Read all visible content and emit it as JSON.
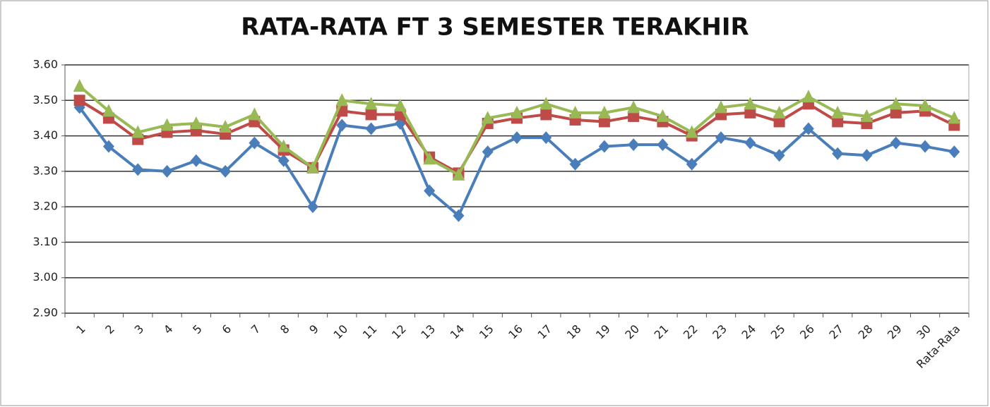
{
  "chart_data": {
    "type": "line",
    "title": "RATA-RATA FT 3 SEMESTER TERAKHIR",
    "categories": [
      "1",
      "2",
      "3",
      "4",
      "5",
      "6",
      "7",
      "8",
      "9",
      "10",
      "11",
      "12",
      "13",
      "14",
      "15",
      "16",
      "17",
      "18",
      "19",
      "20",
      "21",
      "22",
      "23",
      "24",
      "25",
      "26",
      "27",
      "28",
      "29",
      "30",
      "Rata-Rata"
    ],
    "series": [
      {
        "color": "#4a7ebb",
        "marker": "diamond",
        "values": [
          3.48,
          3.37,
          3.305,
          3.3,
          3.33,
          3.3,
          3.38,
          3.33,
          3.2,
          3.43,
          3.42,
          3.435,
          3.245,
          3.175,
          3.355,
          3.395,
          3.395,
          3.32,
          3.37,
          3.375,
          3.375,
          3.32,
          3.395,
          3.38,
          3.345,
          3.42,
          3.35,
          3.345,
          3.38,
          3.37,
          3.355
        ]
      },
      {
        "color": "#be4b48",
        "marker": "square",
        "values": [
          3.5,
          3.45,
          3.39,
          3.41,
          3.415,
          3.405,
          3.44,
          3.36,
          3.31,
          3.47,
          3.46,
          3.46,
          3.34,
          3.295,
          3.435,
          3.45,
          3.46,
          3.445,
          3.44,
          3.455,
          3.44,
          3.4,
          3.46,
          3.465,
          3.44,
          3.49,
          3.44,
          3.435,
          3.465,
          3.47,
          3.43
        ]
      },
      {
        "color": "#98b954",
        "marker": "triangle",
        "values": [
          3.54,
          3.47,
          3.41,
          3.43,
          3.435,
          3.425,
          3.46,
          3.37,
          3.31,
          3.5,
          3.49,
          3.485,
          3.335,
          3.29,
          3.45,
          3.465,
          3.49,
          3.465,
          3.465,
          3.48,
          3.455,
          3.41,
          3.48,
          3.49,
          3.465,
          3.51,
          3.465,
          3.455,
          3.49,
          3.485,
          3.45
        ]
      }
    ],
    "ylim": [
      2.9,
      3.6
    ],
    "yticks": [
      {
        "value": 2.9,
        "label": "2.90"
      },
      {
        "value": 3.0,
        "label": "3.00"
      },
      {
        "value": 3.1,
        "label": "3.10"
      },
      {
        "value": 3.2,
        "label": "3.20"
      },
      {
        "value": 3.3,
        "label": "3.30"
      },
      {
        "value": 3.4,
        "label": "3.40"
      },
      {
        "value": 3.5,
        "label": "3.50"
      },
      {
        "value": 3.6,
        "label": "3.60"
      }
    ],
    "grid": true
  }
}
